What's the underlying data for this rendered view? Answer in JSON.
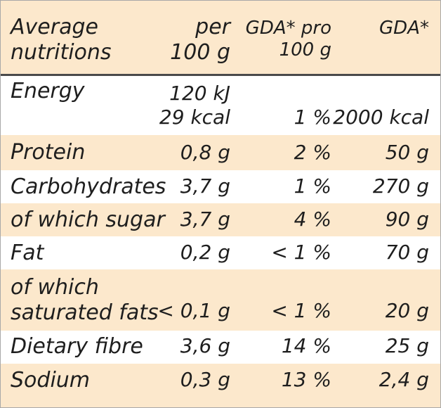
{
  "header": {
    "col0": [
      "Average",
      "nutritions"
    ],
    "col1": [
      "per",
      "100 g"
    ],
    "col2": [
      "GDA* pro",
      "100 g"
    ],
    "col3": "GDA*"
  },
  "rows": [
    {
      "name": [
        "Energy"
      ],
      "per100g": [
        "120 kJ",
        "29 kcal"
      ],
      "gda_pro": "1 %",
      "gda": "2000 kcal"
    },
    {
      "name": [
        "Protein"
      ],
      "per100g": [
        "0,8 g"
      ],
      "gda_pro": "2 %",
      "gda": "50 g"
    },
    {
      "name": [
        "Carbohydrates"
      ],
      "per100g": [
        "3,7 g"
      ],
      "gda_pro": "1 %",
      "gda": "270 g"
    },
    {
      "name": [
        "of which sugar"
      ],
      "per100g": [
        "3,7 g"
      ],
      "gda_pro": "4 %",
      "gda": "90 g"
    },
    {
      "name": [
        "Fat"
      ],
      "per100g": [
        "0,2 g"
      ],
      "gda_pro": "< 1 %",
      "gda": "70 g"
    },
    {
      "name": [
        "of which",
        "saturated fats"
      ],
      "per100g": [
        "< 0,1 g"
      ],
      "gda_pro": "< 1 %",
      "gda": "20 g"
    },
    {
      "name": [
        "Dietary fibre"
      ],
      "per100g": [
        "3,6 g"
      ],
      "gda_pro": "14 %",
      "gda": "25 g"
    },
    {
      "name": [
        "Sodium"
      ],
      "per100g": [
        "0,3 g"
      ],
      "gda_pro": "13 %",
      "gda": "2,4 g"
    }
  ],
  "colors": {
    "band": "#fce8cc",
    "text": "#1e1e1e",
    "rule": "#4a4a4a"
  }
}
